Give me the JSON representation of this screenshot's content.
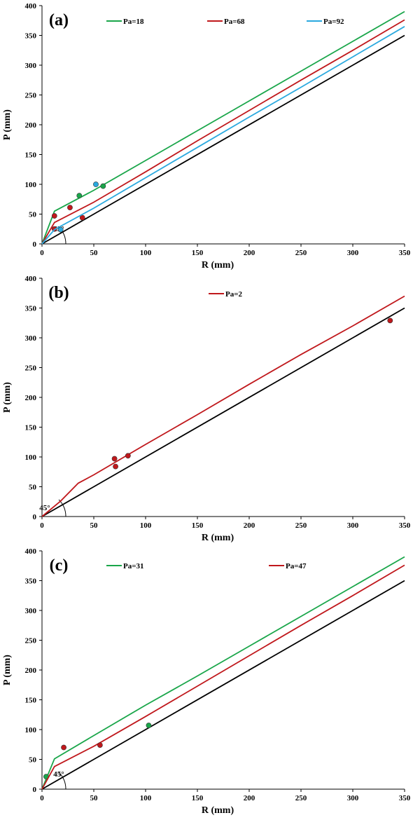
{
  "chart_data": [
    {
      "type": "line",
      "panel": "(a)",
      "xlabel": "R (mm)",
      "ylabel": "P (mm)",
      "xlim": [
        0,
        350
      ],
      "ylim": [
        0,
        400
      ],
      "xticks": [
        0,
        50,
        100,
        150,
        200,
        250,
        300,
        350
      ],
      "yticks": [
        0,
        50,
        100,
        150,
        200,
        250,
        300,
        350,
        400
      ],
      "grid": false,
      "legend": "top",
      "reference_line": {
        "x": [
          0,
          350
        ],
        "y": [
          0,
          350
        ],
        "color": "#000000"
      },
      "angle_annotation": "45°",
      "series": [
        {
          "name": "Pa=18",
          "color": "#1aa64a",
          "x": [
            0,
            12,
            50,
            100,
            150,
            200,
            250,
            300,
            350
          ],
          "y": [
            0,
            55,
            90,
            140,
            190,
            240,
            290,
            340,
            390
          ],
          "points": [
            [
              36,
              81
            ],
            [
              59,
              97
            ]
          ]
        },
        {
          "name": "Pa=68",
          "color": "#c0181c",
          "x": [
            0,
            12,
            50,
            100,
            150,
            200,
            250,
            300,
            350
          ],
          "y": [
            0,
            36,
            70,
            121,
            173,
            224,
            275,
            325,
            376
          ],
          "points": [
            [
              12,
              47
            ],
            [
              12,
              25
            ],
            [
              27,
              61
            ],
            [
              39,
              44
            ]
          ]
        },
        {
          "name": "Pa=92",
          "color": "#2aa9df",
          "x": [
            0,
            12,
            50,
            100,
            150,
            200,
            250,
            300,
            350
          ],
          "y": [
            0,
            24,
            60,
            111,
            162,
            213,
            263,
            314,
            365
          ],
          "points": [
            [
              18,
              24
            ],
            [
              52,
              100
            ]
          ]
        }
      ]
    },
    {
      "type": "line",
      "panel": "(b)",
      "xlabel": "R (mm)",
      "ylabel": "P (mm)",
      "xlim": [
        0,
        350
      ],
      "ylim": [
        0,
        400
      ],
      "xticks": [
        0,
        50,
        100,
        150,
        200,
        250,
        300,
        350
      ],
      "yticks": [
        0,
        50,
        100,
        150,
        200,
        250,
        300,
        350,
        400
      ],
      "grid": false,
      "legend": "top",
      "reference_line": {
        "x": [
          0,
          350
        ],
        "y": [
          0,
          350
        ],
        "color": "#000000"
      },
      "angle_annotation": "45°",
      "series": [
        {
          "name": "Pa=2",
          "color": "#c0181c",
          "x": [
            0,
            18,
            35,
            50,
            100,
            150,
            200,
            250,
            300,
            350
          ],
          "y": [
            0,
            26,
            56,
            70,
            121,
            171,
            222,
            272,
            320,
            370
          ],
          "points": [
            [
              70,
              97
            ],
            [
              71,
              84
            ],
            [
              83,
              102
            ],
            [
              336,
              329
            ]
          ]
        }
      ]
    },
    {
      "type": "line",
      "panel": "(c)",
      "xlabel": "R (mm)",
      "ylabel": "P (mm)",
      "xlim": [
        0,
        350
      ],
      "ylim": [
        0,
        400
      ],
      "xticks": [
        0,
        50,
        100,
        150,
        200,
        250,
        300,
        350
      ],
      "yticks": [
        0,
        50,
        100,
        150,
        200,
        250,
        300,
        350,
        400
      ],
      "grid": false,
      "legend": "top",
      "reference_line": {
        "x": [
          0,
          350
        ],
        "y": [
          0,
          350
        ],
        "color": "#000000"
      },
      "angle_annotation": "45°",
      "series": [
        {
          "name": "Pa=31",
          "color": "#1aa64a",
          "x": [
            0,
            12,
            50,
            100,
            150,
            200,
            250,
            300,
            350
          ],
          "y": [
            0,
            51,
            90,
            141,
            190,
            240,
            290,
            340,
            390
          ],
          "points": [
            [
              4,
              21
            ],
            [
              103,
              107
            ]
          ]
        },
        {
          "name": "Pa=47",
          "color": "#c0181c",
          "x": [
            0,
            12,
            50,
            100,
            150,
            200,
            250,
            300,
            350
          ],
          "y": [
            0,
            38,
            72,
            122,
            173,
            224,
            275,
            325,
            376
          ],
          "points": [
            [
              21,
              70
            ],
            [
              56,
              74
            ]
          ]
        }
      ]
    }
  ]
}
